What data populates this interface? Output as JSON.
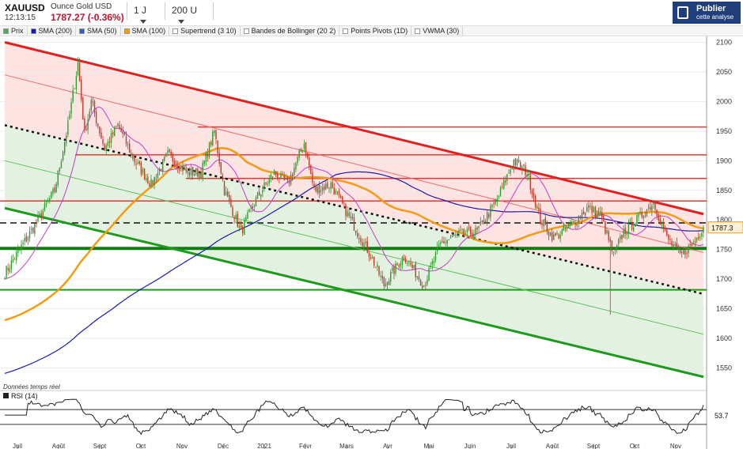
{
  "header": {
    "symbol": "XAUUSD",
    "time": "12:13:15",
    "name": "Ounce Gold USD",
    "price_change": "1787.27 (-0.36%)",
    "interval": "1 J",
    "range": "200 U",
    "logo_line1": "Publier",
    "logo_line2": "cette analyse"
  },
  "legend": [
    {
      "label": "Prix",
      "color": "#4caf50"
    },
    {
      "label": "SMA (200)",
      "color": "#1a1aaf"
    },
    {
      "label": "SMA (50)",
      "color": "#2d5bd8"
    },
    {
      "label": "SMA (100)",
      "color": "#f39c12"
    },
    {
      "label": "Supertrend (3 10)",
      "color": "#ffffff"
    },
    {
      "label": "Bandes de Bollinger (20 2)",
      "color": "#ffffff"
    },
    {
      "label": "Points Pivots (1D)",
      "color": "#ffffff"
    },
    {
      "label": "VWMA (30)",
      "color": "#ffffff"
    }
  ],
  "colors": {
    "up": "#2e9a2e",
    "down": "#c0392b",
    "resistance": "#e53935",
    "support": "#1f9a1f",
    "sma200": "#1a1aaf",
    "sma100": "#f39c12",
    "bollinger": "#c83ac8",
    "rsi": "#222222"
  },
  "realtime_note": "Données temps réel",
  "rsi_label": "RSI (14)",
  "chart_data": {
    "type": "candlestick",
    "ylim": [
      1520,
      2110
    ],
    "y_ticks": [
      1550,
      1600,
      1650,
      1700,
      1750,
      1800,
      1850,
      1900,
      1950,
      2000,
      2050,
      2100
    ],
    "x_ticks": [
      "Juil",
      "Août",
      "Sept",
      "Oct",
      "Nov",
      "Déc",
      "2021",
      "Févr",
      "Mars",
      "Avr",
      "Mai",
      "Juin",
      "Juil",
      "Août",
      "Sept",
      "Oct",
      "Nov"
    ],
    "last_price_label": "1787.3",
    "rsi_value_label": "53.7",
    "rsi_ylim": [
      0,
      100
    ],
    "rsi_bands": [
      30,
      70
    ],
    "anchors": [
      {
        "t": 0,
        "p": 1710
      },
      {
        "t": 20,
        "p": 1800
      },
      {
        "t": 30,
        "p": 1850
      },
      {
        "t": 38,
        "p": 1960
      },
      {
        "t": 44,
        "p": 2065
      },
      {
        "t": 48,
        "p": 1945
      },
      {
        "t": 52,
        "p": 2000
      },
      {
        "t": 60,
        "p": 1920
      },
      {
        "t": 68,
        "p": 1960
      },
      {
        "t": 78,
        "p": 1900
      },
      {
        "t": 88,
        "p": 1860
      },
      {
        "t": 98,
        "p": 1910
      },
      {
        "t": 110,
        "p": 1880
      },
      {
        "t": 118,
        "p": 1880
      },
      {
        "t": 126,
        "p": 1950
      },
      {
        "t": 132,
        "p": 1850
      },
      {
        "t": 142,
        "p": 1780
      },
      {
        "t": 152,
        "p": 1840
      },
      {
        "t": 162,
        "p": 1880
      },
      {
        "t": 170,
        "p": 1860
      },
      {
        "t": 180,
        "p": 1930
      },
      {
        "t": 186,
        "p": 1850
      },
      {
        "t": 196,
        "p": 1860
      },
      {
        "t": 208,
        "p": 1800
      },
      {
        "t": 220,
        "p": 1740
      },
      {
        "t": 228,
        "p": 1690
      },
      {
        "t": 240,
        "p": 1740
      },
      {
        "t": 252,
        "p": 1690
      },
      {
        "t": 262,
        "p": 1760
      },
      {
        "t": 272,
        "p": 1775
      },
      {
        "t": 284,
        "p": 1780
      },
      {
        "t": 296,
        "p": 1835
      },
      {
        "t": 306,
        "p": 1900
      },
      {
        "t": 314,
        "p": 1880
      },
      {
        "t": 322,
        "p": 1800
      },
      {
        "t": 330,
        "p": 1770
      },
      {
        "t": 340,
        "p": 1790
      },
      {
        "t": 350,
        "p": 1820
      },
      {
        "t": 358,
        "p": 1810
      },
      {
        "t": 366,
        "p": 1740
      },
      {
        "t": 372,
        "p": 1780
      },
      {
        "t": 380,
        "p": 1800
      },
      {
        "t": 390,
        "p": 1830
      },
      {
        "t": 398,
        "p": 1770
      },
      {
        "t": 406,
        "p": 1740
      },
      {
        "t": 414,
        "p": 1760
      },
      {
        "t": 420,
        "p": 1790
      }
    ],
    "spikes": [
      {
        "t": 364,
        "low": 1640
      },
      {
        "t": 44,
        "high": 2075
      }
    ],
    "lines": {
      "resistance_horizontal": [
        1957,
        1910,
        1870,
        1832
      ],
      "support_horizontal": [
        1752,
        1682
      ],
      "pivot_dashed": 1795,
      "channel_upper": [
        [
          0,
          2100
        ],
        [
          440,
          1810
        ]
      ],
      "channel_mid_red": [
        [
          0,
          2045
        ],
        [
          440,
          1745
        ]
      ],
      "channel_mid_green": [
        [
          0,
          1900
        ],
        [
          440,
          1607
        ]
      ],
      "channel_lower": [
        [
          0,
          1820
        ],
        [
          440,
          1535
        ]
      ],
      "trend_dotted": [
        [
          0,
          1960
        ],
        [
          440,
          1675
        ]
      ]
    }
  }
}
